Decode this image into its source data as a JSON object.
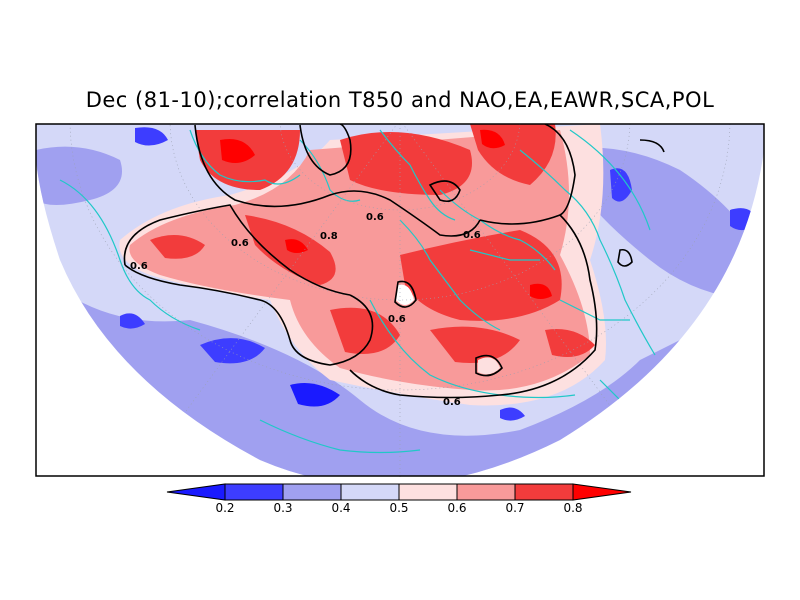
{
  "title": "Dec (81-10);correlation T850 and NAO,EA,EAWR,SCA,POL",
  "colors": {
    "level_fills": [
      "#1a1aff",
      "#3d3dff",
      "#a0a0f0",
      "#d4d8f8",
      "#fde0e0",
      "#f89a9a",
      "#f23c3c",
      "#ff0000"
    ],
    "coast": "#20c8c8",
    "contour": "#000000"
  },
  "colorbar": {
    "ticks": [
      "0.2",
      "0.3",
      "0.4",
      "0.5",
      "0.6",
      "0.7",
      "0.8"
    ]
  },
  "contour_labels": [
    "0.6",
    "0.8",
    "0.6",
    "0.6",
    "0.6",
    "0.6",
    "0.6"
  ]
}
